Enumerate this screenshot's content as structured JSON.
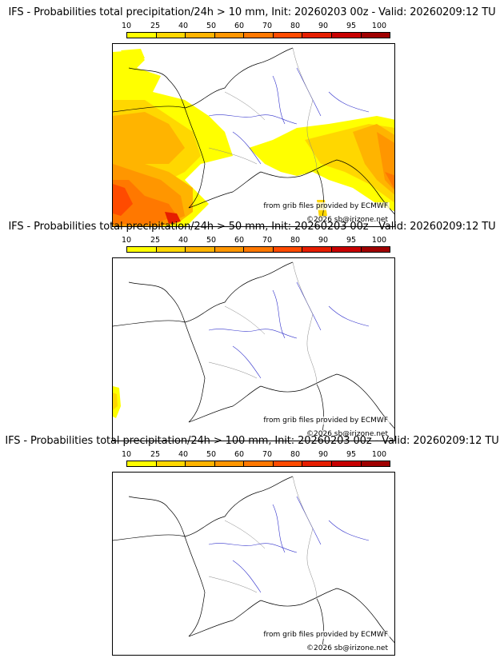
{
  "scale": {
    "labels": [
      "10",
      "25",
      "40",
      "50",
      "60",
      "70",
      "80",
      "90",
      "95",
      "100"
    ],
    "colors": [
      "#ffff00",
      "#ffd700",
      "#ffb400",
      "#ff9600",
      "#ff7800",
      "#ff4b00",
      "#e61e00",
      "#c80000",
      "#a00000",
      "#5a0000"
    ]
  },
  "credits": {
    "source": "from grib files provided by ECMWF",
    "copyright": "©2026 sb@irizone.net"
  },
  "panels": [
    {
      "title": "IFS - Probabilities total precipitation/24h > 10 mm, Init: 20260203 00z - Valid: 20260209:12 TU",
      "threshold": "10 mm"
    },
    {
      "title": "IFS - Probabilities total precipitation/24h > 50 mm, Init: 20260203 00z - Valid: 20260209:12 TU",
      "threshold": "50 mm"
    },
    {
      "title": "IFS - Probabilities total precipitation/24h > 100 mm, Init: 20260203 00z - Valid: 20260209:12 TU",
      "threshold": "100 mm"
    }
  ]
}
